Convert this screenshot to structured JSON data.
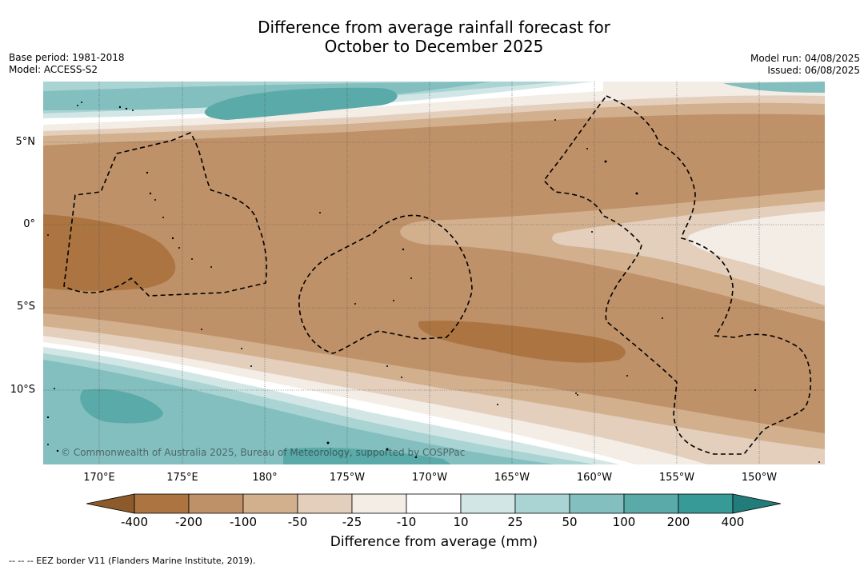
{
  "title_line1": "Difference from average rainfall forecast for",
  "title_line2": "October to December 2025",
  "base_period": "Base period: 1981-2018",
  "model": "Model: ACCESS-S2",
  "model_run": "Model run: 04/08/2025",
  "issued": "Issued: 06/08/2025",
  "lat_labels": [
    "5°N",
    "0°",
    "5°S",
    "10°S"
  ],
  "lon_labels": [
    "170°E",
    "175°E",
    "180°",
    "175°W",
    "170°W",
    "165°W",
    "160°W",
    "155°W",
    "150°W"
  ],
  "copyright": "© Commonwealth of Australia 2025, Bureau of Meteorology, supported by COSPPac",
  "colorbar": {
    "ticks": [
      "-400",
      "-200",
      "-100",
      "-50",
      "-25",
      "-10",
      "10",
      "25",
      "50",
      "100",
      "200",
      "400"
    ],
    "colors": [
      "#8c5a2b",
      "#ab7440",
      "#bf9168",
      "#d2b08e",
      "#e4cfbc",
      "#f3ede6",
      "#ffffff",
      "#d2e7e5",
      "#a9d4d3",
      "#83bfbf",
      "#5aaaa9",
      "#379a97",
      "#227c7a"
    ],
    "label": "Difference from average (mm)"
  },
  "legend_line": "--  --  -- EEZ border V11 (Flanders Marine Institute, 2019)."
}
